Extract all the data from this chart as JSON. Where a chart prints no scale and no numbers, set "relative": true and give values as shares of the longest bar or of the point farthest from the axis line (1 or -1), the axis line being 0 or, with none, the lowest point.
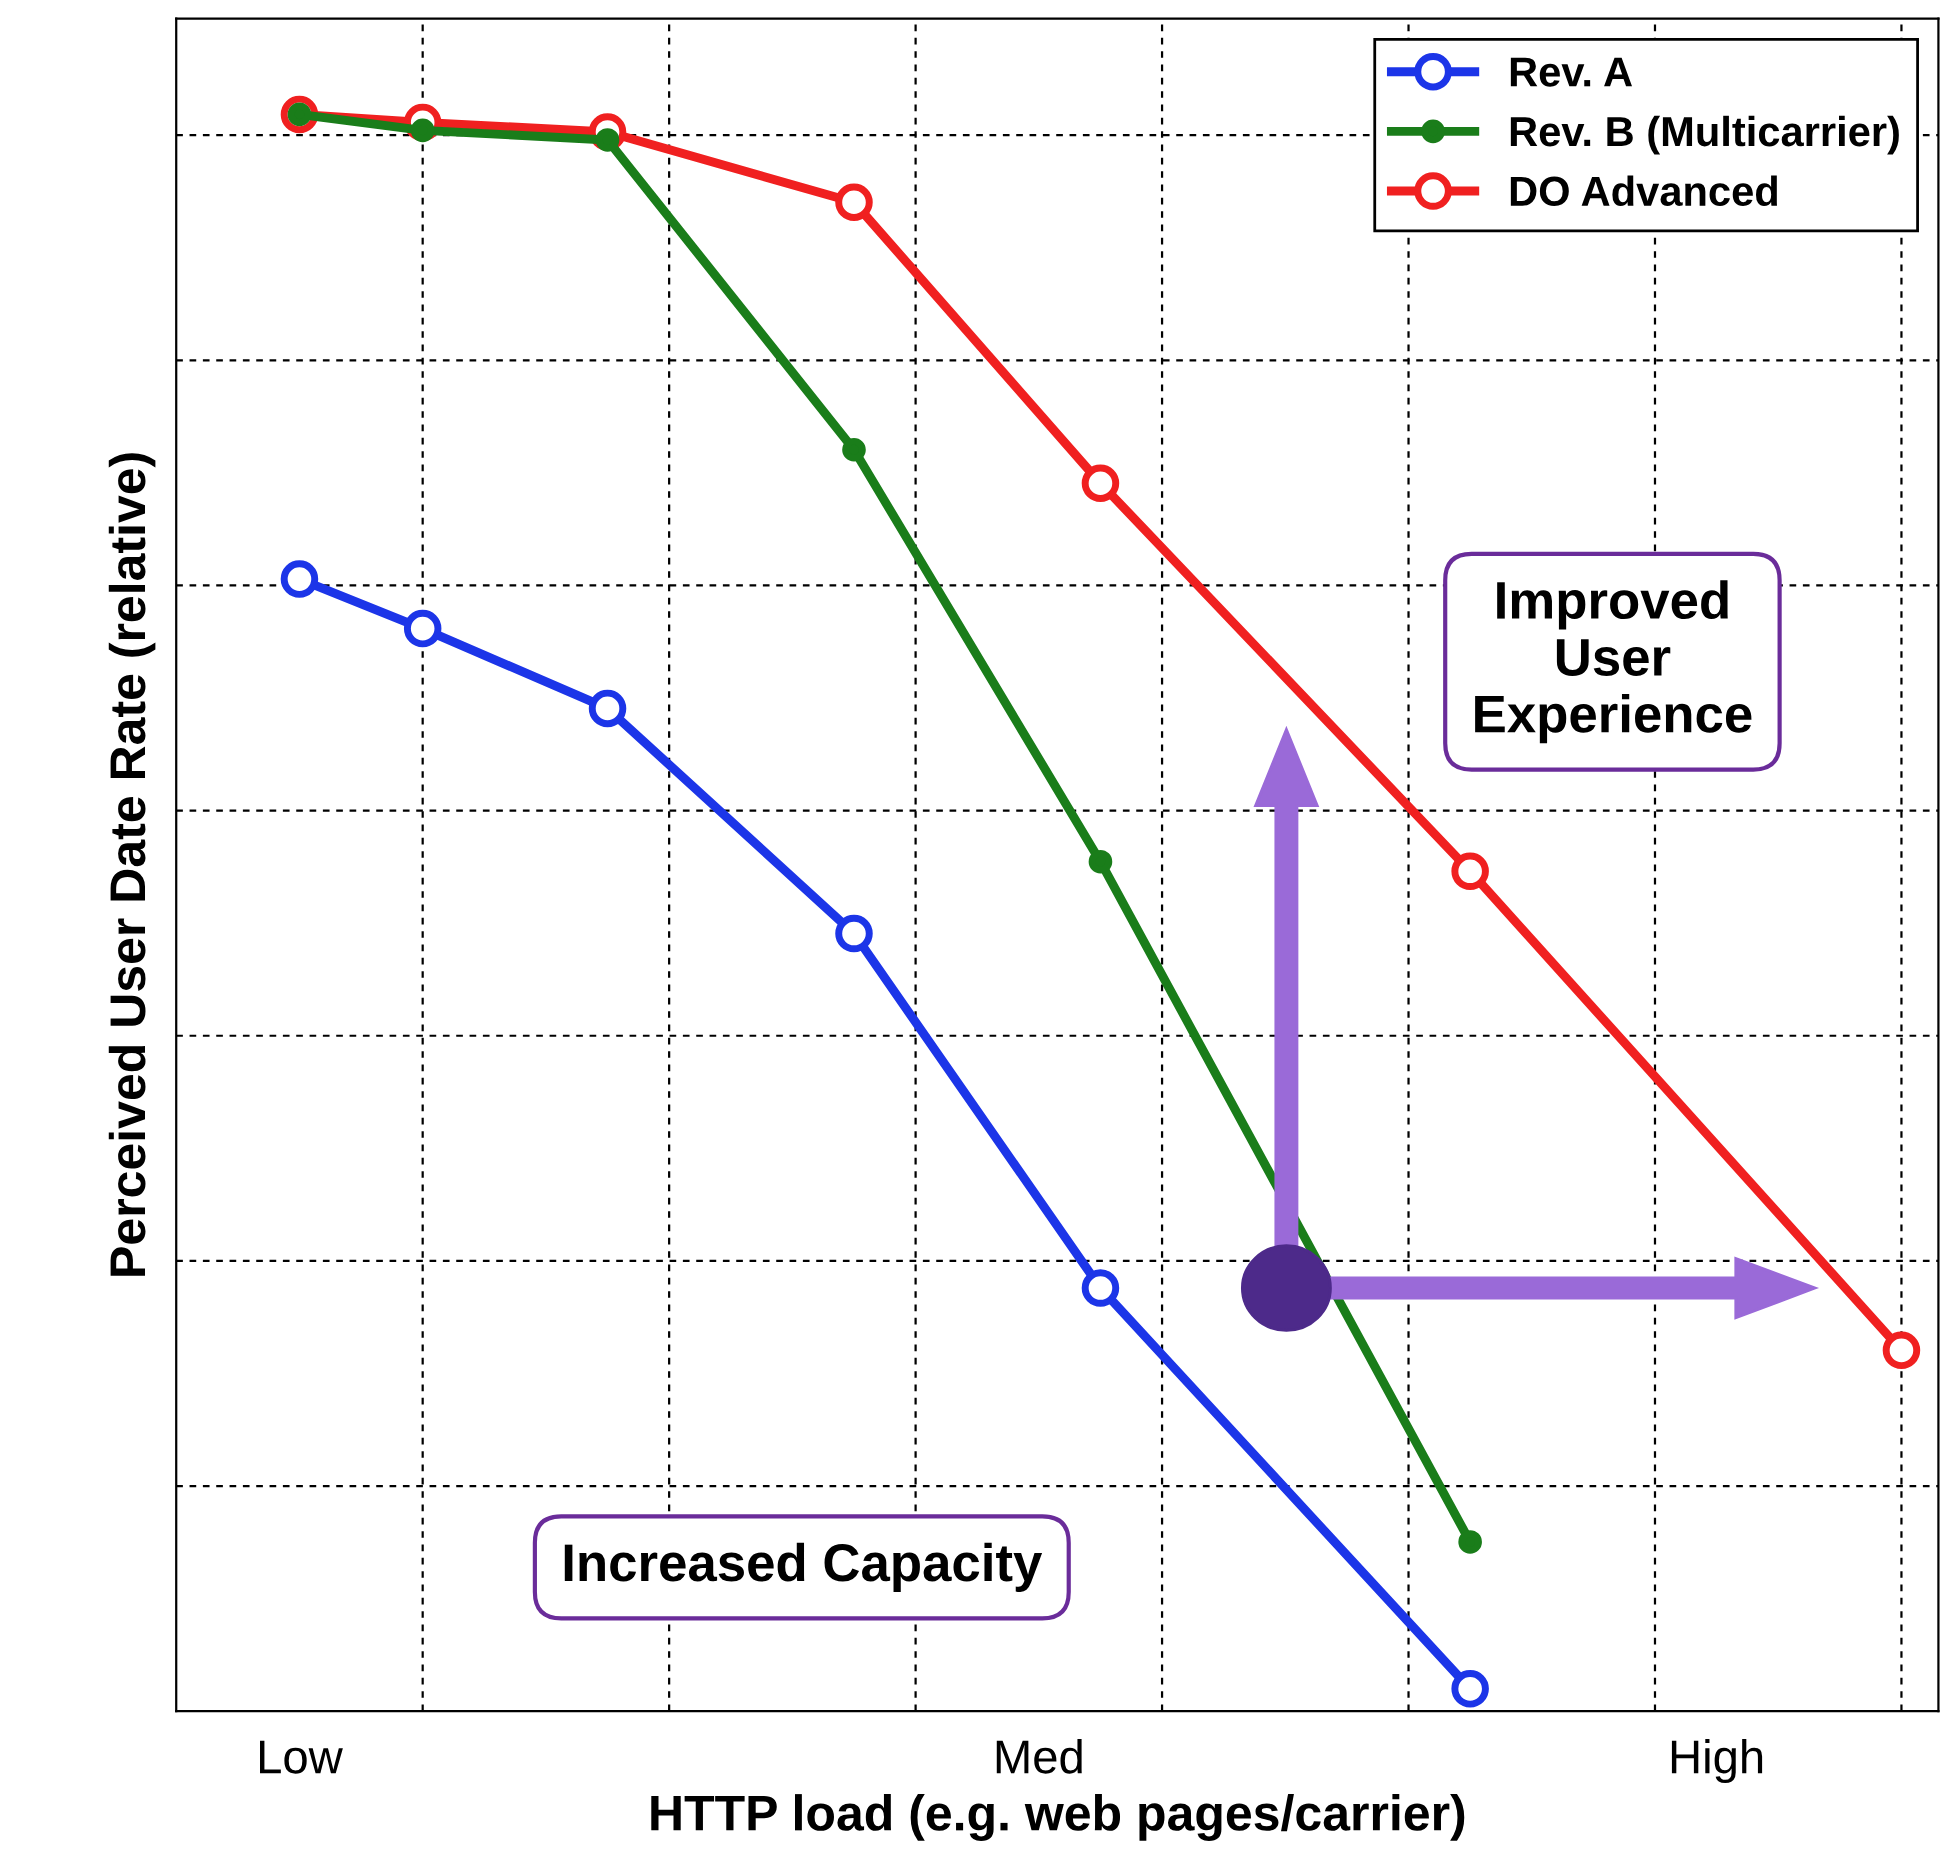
{
  "chart_data": {
    "type": "line",
    "relative": true,
    "xlabel": "HTTP load (e.g. web pages/carrier)",
    "ylabel": "Perceived User Date Rate (relative)",
    "categories": [
      null,
      null,
      "Low",
      null,
      null,
      null,
      null,
      null,
      null,
      null,
      null,
      null,
      null,
      null,
      "Med",
      null,
      null,
      null,
      null,
      null,
      null,
      null,
      null,
      null,
      null,
      "High",
      null,
      null,
      null
    ],
    "series": [
      {
        "name": "Rev. A",
        "color": "#1c35e8",
        "values": [
          null,
          null,
          0.709,
          null,
          0.678,
          null,
          null,
          0.628,
          null,
          null,
          null,
          0.487,
          null,
          null,
          null,
          0.265,
          null,
          null,
          null,
          null,
          null,
          0.014,
          null,
          null,
          null,
          null,
          null,
          null,
          null
        ]
      },
      {
        "name": "Rev. B (Multicarrier)",
        "color": "#1a7d1a",
        "values": [
          null,
          null,
          1.0,
          null,
          0.99,
          null,
          null,
          0.984,
          null,
          null,
          null,
          0.79,
          null,
          null,
          null,
          0.532,
          null,
          null,
          null,
          null,
          null,
          0.106,
          null,
          null,
          null,
          null,
          null,
          null,
          null
        ]
      },
      {
        "name": "DO Advanced",
        "color": "#f02020",
        "values": [
          null,
          null,
          1.0,
          null,
          0.995,
          null,
          null,
          0.989,
          null,
          null,
          null,
          0.945,
          null,
          null,
          null,
          0.769,
          null,
          null,
          null,
          null,
          null,
          0.526,
          null,
          null,
          null,
          null,
          null,
          null,
          0.226
        ]
      }
    ],
    "annotations": [
      "Improved\nUser\nExperience",
      "Increased Capacity"
    ],
    "marker": "circle",
    "line_style": "solid",
    "grid": true,
    "legend": "top right"
  }
}
